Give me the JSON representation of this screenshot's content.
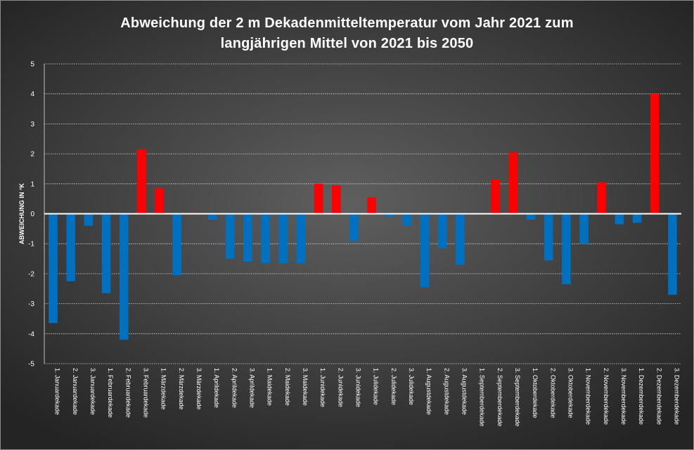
{
  "chart_data": {
    "type": "bar",
    "title_line1": "Abweichung der 2 m Dekadenmitteltemperatur  vom Jahr 2021 zum",
    "title_line2": "langjährigen Mittel von 2021 bis 2050",
    "ylabel": "ABWEICHUNG IN °K",
    "xlabel": "",
    "ylim": [
      -5,
      5
    ],
    "yticks": [
      -5,
      -4,
      -3,
      -2,
      -1,
      0,
      1,
      2,
      3,
      4,
      5
    ],
    "grid": true,
    "legend": "none",
    "colors": {
      "positive": "#ff0000",
      "negative": "#0070c0",
      "background": "#3f3f3f",
      "text": "#ffffff",
      "zero_line": "#ffffff",
      "grid": "#d9d9d9"
    },
    "categories": [
      "1. Januardekade",
      "2. Januardekade",
      "3. Januardekade",
      "1. Februardekade",
      "2. Februardekade",
      "3. Februardekade",
      "1. Märzdekade",
      "2. Märzdekade",
      "3. Märzdekade",
      "1. Aprildekade",
      "2. Aprildekade",
      "3. Aprildekade",
      "1. Maidekade",
      "2. Maidekade",
      "3. Maidekade",
      "1. Junidekade",
      "2. Junidekade",
      "3. Junidekade",
      "1. Julidekade",
      "2. Julidekade",
      "3. Julidekade",
      "1. Augustdekade",
      "2. Augustdekade",
      "3. Augustdekade",
      "1. Septemberdekade",
      "2. Septemberdekade",
      "3. Septemberdekade",
      "1. Oktoberdekade",
      "2. Oktoberdekade",
      "3. Oktoberdekade",
      "1. Novemberdekade",
      "2. Novemberdekade",
      "3. Novemberdekade",
      "1. Dezemberdekade",
      "2. Dezemberdekade",
      "3. Dezemberdekade"
    ],
    "values": [
      -3.65,
      -2.25,
      -0.4,
      -2.65,
      -4.2,
      2.15,
      0.85,
      -2.05,
      0.03,
      -0.2,
      -1.5,
      -1.6,
      -1.65,
      -1.65,
      -1.65,
      1.0,
      0.95,
      -0.9,
      0.55,
      -0.1,
      -0.4,
      -2.45,
      -1.15,
      -1.7,
      0.0,
      1.15,
      2.05,
      -0.2,
      -1.55,
      -2.35,
      -1.0,
      1.05,
      -0.35,
      -0.3,
      4.0,
      -2.7
    ]
  }
}
